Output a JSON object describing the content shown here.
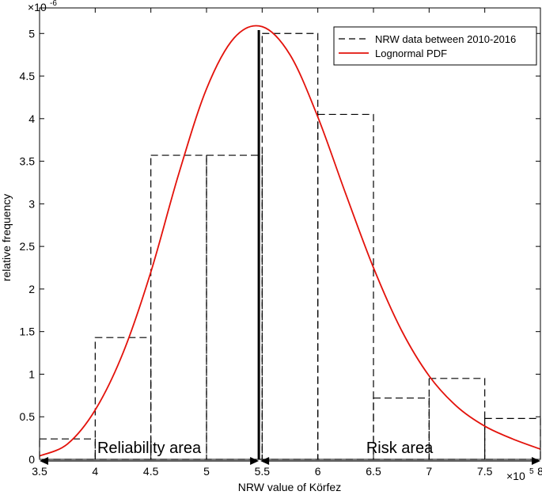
{
  "chart_data": {
    "type": "bar",
    "xlabel": "NRW value of Körfez",
    "ylabel": "relative frequency",
    "x_exponent_label": "×10",
    "x_exponent_power": "5",
    "y_exponent_label": "×10",
    "y_exponent_power": "-6",
    "xlim": [
      3.5,
      8.0
    ],
    "ylim": [
      0,
      5.3
    ],
    "x_ticks": [
      3.5,
      4,
      4.5,
      5,
      5.5,
      6,
      6.5,
      7,
      7.5,
      8
    ],
    "x_tick_labels": [
      "3.5",
      "4",
      "4.5",
      "5",
      "5.5",
      "6",
      "6.5",
      "7",
      "7.5",
      "8"
    ],
    "y_ticks": [
      0,
      0.5,
      1,
      1.5,
      2,
      2.5,
      3,
      3.5,
      4,
      4.5,
      5
    ],
    "y_tick_labels": [
      "0",
      "0.5",
      "1",
      "1.5",
      "2",
      "2.5",
      "3",
      "3.5",
      "4",
      "4.5",
      "5"
    ],
    "histogram": {
      "name": "NRW data between 2010-2016",
      "bins": [
        {
          "x0": 3.5,
          "x1": 4.0,
          "value": 0.24
        },
        {
          "x0": 4.0,
          "x1": 4.5,
          "value": 1.43
        },
        {
          "x0": 4.5,
          "x1": 5.0,
          "value": 3.57
        },
        {
          "x0": 5.0,
          "x1": 5.5,
          "value": 3.57
        },
        {
          "x0": 5.5,
          "x1": 6.0,
          "value": 5.0
        },
        {
          "x0": 6.0,
          "x1": 6.5,
          "value": 4.05
        },
        {
          "x0": 6.5,
          "x1": 7.0,
          "value": 0.72
        },
        {
          "x0": 7.0,
          "x1": 7.5,
          "value": 0.95
        },
        {
          "x0": 7.5,
          "x1": 8.0,
          "value": 0.48
        }
      ]
    },
    "pdf": {
      "name": "Lognormal PDF",
      "color": "#e3120b",
      "x": [
        3.5,
        3.75,
        4.0,
        4.25,
        4.5,
        4.75,
        5.0,
        5.25,
        5.5,
        5.75,
        6.0,
        6.25,
        6.5,
        6.75,
        7.0,
        7.25,
        7.5,
        7.75,
        8.0
      ],
      "y": [
        0.04,
        0.18,
        0.58,
        1.25,
        2.2,
        3.35,
        4.35,
        4.95,
        5.08,
        4.75,
        4.02,
        3.12,
        2.25,
        1.52,
        0.98,
        0.62,
        0.39,
        0.24,
        0.12
      ]
    },
    "threshold": {
      "x": 5.47
    },
    "areas": [
      {
        "label": "Reliability area",
        "x0": 3.5,
        "x1": 5.47
      },
      {
        "label": "Risk area",
        "x0": 5.47,
        "x1": 8.0
      }
    ],
    "legend_position": "top-right",
    "grid": false
  }
}
